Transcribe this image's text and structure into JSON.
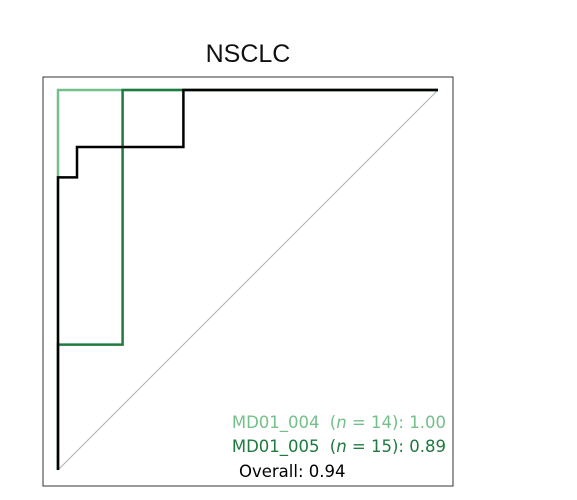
{
  "chart_data": {
    "type": "line",
    "title": "NSCLC",
    "xlabel": "",
    "ylabel": "",
    "xlim": [
      0,
      1
    ],
    "ylim": [
      0,
      1
    ],
    "grid": false,
    "legend_position": "bottom-right",
    "reference_line": {
      "x": [
        0,
        1
      ],
      "y": [
        0,
        1
      ],
      "color": "#b0b0b0"
    },
    "series": [
      {
        "id": "md01_004",
        "color": "#74c08a",
        "x": [
          0,
          0,
          0,
          0.33,
          1
        ],
        "y": [
          0,
          0.66,
          1,
          1,
          1
        ],
        "legend": {
          "name": "MD01_004",
          "n_prefix": "(",
          "n_symbol": "n",
          "n_eq": " = 14): ",
          "auc": "1.00"
        }
      },
      {
        "id": "md01_005",
        "color": "#1e7a3e",
        "x": [
          0,
          0,
          0.17,
          0.17,
          0.33,
          1
        ],
        "y": [
          0,
          0.33,
          0.33,
          1,
          1,
          1
        ],
        "legend": {
          "name": "MD01_005",
          "n_prefix": "(",
          "n_symbol": "n",
          "n_eq": " = 15): ",
          "auc": "0.89"
        }
      },
      {
        "id": "overall",
        "color": "#000000",
        "x": [
          0,
          0,
          0.05,
          0.05,
          0.33,
          0.33,
          1
        ],
        "y": [
          0,
          0.77,
          0.77,
          0.85,
          0.85,
          1,
          1
        ],
        "legend": {
          "name": "Overall: ",
          "auc": "0.94"
        }
      }
    ]
  }
}
